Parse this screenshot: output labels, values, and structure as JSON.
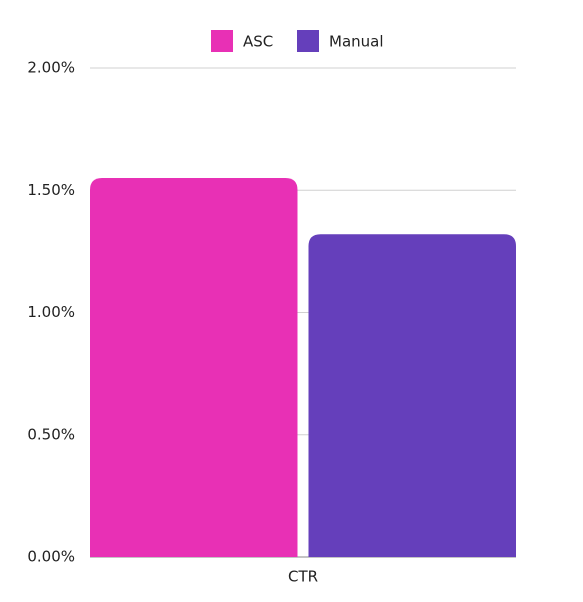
{
  "chart_data": {
    "type": "bar",
    "categories": [
      "CTR"
    ],
    "series": [
      {
        "name": "ASC",
        "color": "#e830b5",
        "values": [
          1.55
        ]
      },
      {
        "name": "Manual",
        "color": "#653fbb",
        "values": [
          1.32
        ]
      }
    ],
    "ylim": [
      0,
      2
    ],
    "yticks": [
      {
        "value": 0,
        "label": "0.00%"
      },
      {
        "value": 0.5,
        "label": "0.50%"
      },
      {
        "value": 1,
        "label": "1.00%"
      },
      {
        "value": 1.5,
        "label": "1.50%"
      },
      {
        "value": 2,
        "label": "2.00%"
      }
    ],
    "grid": true,
    "legend": "top"
  }
}
